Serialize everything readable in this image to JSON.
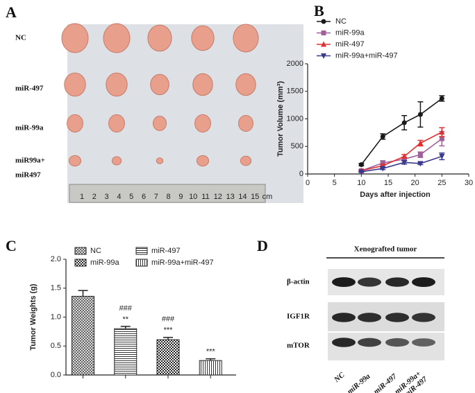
{
  "panel_labels": [
    "A",
    "B",
    "C",
    "D"
  ],
  "photo": {
    "row_labels": [
      "NC",
      "miR-497",
      "miR-99a",
      "miR99a+",
      "miR497"
    ],
    "ruler_labels": [
      "1",
      "2",
      "3",
      "4",
      "5",
      "6",
      "7",
      "8",
      "9",
      "10",
      "11",
      "12",
      "13",
      "14",
      "15",
      "cm"
    ]
  },
  "blot": {
    "title": "Xenografted tumor",
    "row_labels": [
      "β-actin",
      "IGF1R",
      "mTOR"
    ],
    "lane_labels": [
      "NC",
      "miR-99a",
      "miR-497",
      "miR-99a+",
      "miR-497"
    ]
  },
  "chart_data": [
    {
      "type": "line",
      "y_label": "Tumor Volume (mm³)",
      "x_label": "Days after injection",
      "x": [
        10,
        14,
        18,
        21,
        25
      ],
      "xlim": [
        0,
        30
      ],
      "xticks": [
        0,
        5,
        10,
        15,
        20,
        25,
        30
      ],
      "ylim": [
        0,
        2000
      ],
      "yticks": [
        0,
        500,
        1000,
        1500,
        2000
      ],
      "series": [
        {
          "name": "NC",
          "color": "#1a1a1a",
          "marker": "circle",
          "values": [
            170,
            680,
            930,
            1080,
            1370
          ],
          "errors": [
            20,
            50,
            130,
            230,
            50
          ]
        },
        {
          "name": "miR-99a",
          "color": "#a0609a",
          "marker": "square",
          "values": [
            60,
            200,
            270,
            350,
            640
          ],
          "errors": [
            10,
            40,
            30,
            50,
            130
          ]
        },
        {
          "name": "miR-497",
          "color": "#e03030",
          "marker": "triangle",
          "values": [
            60,
            150,
            320,
            560,
            760
          ],
          "errors": [
            10,
            30,
            30,
            50,
            80
          ]
        },
        {
          "name": "miR-99a+miR-497",
          "color": "#3a3a8c",
          "marker": "triangle-down",
          "values": [
            40,
            100,
            210,
            190,
            320
          ],
          "errors": [
            10,
            20,
            30,
            20,
            60
          ]
        }
      ]
    },
    {
      "type": "bar",
      "y_label": "Tumor Weights (g)",
      "ylim": [
        0,
        2.0
      ],
      "yticks": [
        {
          "value": 0,
          "label": "0.0"
        },
        0.5,
        {
          "value": 1,
          "label": "1.0"
        },
        1.5,
        {
          "value": 2,
          "label": "2.0"
        }
      ],
      "series": [
        {
          "name": "NC",
          "pattern": "crosshatch",
          "values": [
            1.36
          ],
          "errors": [
            0.1
          ],
          "annotations": []
        },
        {
          "name": "miR-497",
          "pattern": "horizontal",
          "values": [
            0.8
          ],
          "errors": [
            0.04
          ],
          "annotations": [
            "###",
            "**"
          ]
        },
        {
          "name": "miR-99a",
          "pattern": "checker",
          "values": [
            0.61
          ],
          "errors": [
            0.04
          ],
          "annotations": [
            "###",
            "***"
          ]
        },
        {
          "name": "miR-99a+miR-497",
          "pattern": "vertical",
          "values": [
            0.25
          ],
          "errors": [
            0.03
          ],
          "annotations": [
            "***"
          ]
        }
      ]
    }
  ]
}
